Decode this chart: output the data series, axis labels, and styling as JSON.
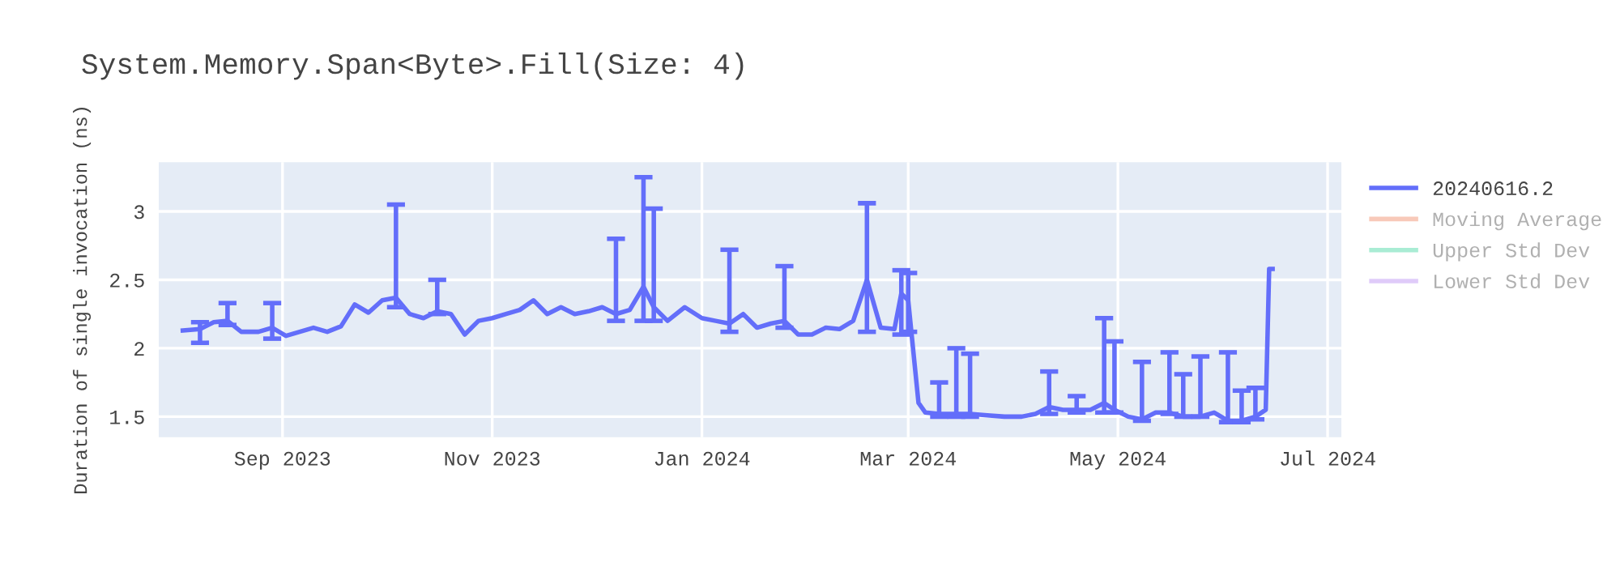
{
  "chart_data": {
    "type": "line",
    "title": "System.Memory.Span<Byte>.Fill(Size: 4)",
    "ylabel": "Duration of single invocation (ns)",
    "x": [
      "2023-08-03",
      "2023-08-08",
      "2023-08-12",
      "2023-08-16",
      "2023-08-20",
      "2023-08-25",
      "2023-08-29",
      "2023-09-02",
      "2023-09-06",
      "2023-09-10",
      "2023-09-14",
      "2023-09-18",
      "2023-09-22",
      "2023-09-26",
      "2023-09-30",
      "2023-10-04",
      "2023-10-08",
      "2023-10-12",
      "2023-10-16",
      "2023-10-20",
      "2023-10-24",
      "2023-10-28",
      "2023-11-01",
      "2023-11-05",
      "2023-11-09",
      "2023-11-13",
      "2023-11-17",
      "2023-11-21",
      "2023-11-25",
      "2023-11-29",
      "2023-12-03",
      "2023-12-07",
      "2023-12-11",
      "2023-12-15",
      "2023-12-18",
      "2023-12-22",
      "2023-12-27",
      "2024-01-01",
      "2024-01-05",
      "2024-01-09",
      "2024-01-13",
      "2024-01-17",
      "2024-01-21",
      "2024-01-25",
      "2024-01-29",
      "2024-02-02",
      "2024-02-06",
      "2024-02-10",
      "2024-02-14",
      "2024-02-18",
      "2024-02-22",
      "2024-02-26",
      "2024-02-28",
      "2024-03-01",
      "2024-03-04",
      "2024-03-06",
      "2024-03-10",
      "2024-03-15",
      "2024-03-19",
      "2024-03-24",
      "2024-03-29",
      "2024-04-03",
      "2024-04-07",
      "2024-04-11",
      "2024-04-15",
      "2024-04-19",
      "2024-04-23",
      "2024-04-27",
      "2024-04-30",
      "2024-05-04",
      "2024-05-08",
      "2024-05-12",
      "2024-05-16",
      "2024-05-20",
      "2024-05-25",
      "2024-05-29",
      "2024-06-02",
      "2024-06-06",
      "2024-06-10",
      "2024-06-13",
      "2024-06-14",
      "2024-06-15"
    ],
    "series": [
      {
        "name": "20240616.2",
        "color": "#636efa",
        "values": [
          2.13,
          2.14,
          2.19,
          2.2,
          2.12,
          2.12,
          2.15,
          2.09,
          2.12,
          2.15,
          2.12,
          2.16,
          2.32,
          2.26,
          2.35,
          2.37,
          2.25,
          2.22,
          2.27,
          2.25,
          2.1,
          2.2,
          2.22,
          2.25,
          2.28,
          2.35,
          2.25,
          2.3,
          2.25,
          2.27,
          2.3,
          2.25,
          2.28,
          2.45,
          2.3,
          2.2,
          2.3,
          2.22,
          2.2,
          2.18,
          2.25,
          2.15,
          2.18,
          2.2,
          2.1,
          2.1,
          2.15,
          2.14,
          2.2,
          2.5,
          2.15,
          2.14,
          2.4,
          2.35,
          1.6,
          1.53,
          1.52,
          1.52,
          1.52,
          1.51,
          1.5,
          1.5,
          1.52,
          1.57,
          1.55,
          1.55,
          1.55,
          1.6,
          1.55,
          1.5,
          1.48,
          1.53,
          1.53,
          1.5,
          1.5,
          1.53,
          1.47,
          1.47,
          1.5,
          1.55,
          2.58,
          2.58
        ],
        "errors": [
          null,
          [
            2.04,
            2.19
          ],
          null,
          [
            2.17,
            2.33
          ],
          null,
          null,
          [
            2.07,
            2.33
          ],
          null,
          null,
          null,
          null,
          null,
          null,
          null,
          null,
          [
            2.3,
            3.05
          ],
          null,
          null,
          [
            2.25,
            2.5
          ],
          null,
          null,
          null,
          null,
          null,
          null,
          null,
          null,
          null,
          null,
          null,
          null,
          [
            2.2,
            2.8
          ],
          null,
          [
            2.2,
            3.25
          ],
          [
            2.2,
            3.02
          ],
          null,
          null,
          null,
          null,
          [
            2.12,
            2.72
          ],
          null,
          null,
          null,
          [
            2.15,
            2.6
          ],
          null,
          null,
          null,
          null,
          null,
          [
            2.12,
            3.06
          ],
          null,
          null,
          [
            2.1,
            2.57
          ],
          [
            2.12,
            2.55
          ],
          null,
          null,
          [
            1.5,
            1.75
          ],
          [
            1.5,
            2.0
          ],
          [
            1.5,
            1.96
          ],
          null,
          null,
          null,
          null,
          [
            1.52,
            1.83
          ],
          null,
          [
            1.53,
            1.65
          ],
          null,
          [
            1.53,
            2.22
          ],
          [
            1.53,
            2.05
          ],
          null,
          [
            1.47,
            1.9
          ],
          null,
          [
            1.52,
            1.97
          ],
          [
            1.5,
            1.81
          ],
          [
            1.5,
            1.94
          ],
          null,
          [
            1.46,
            1.97
          ],
          [
            1.46,
            1.69
          ],
          [
            1.48,
            1.71
          ],
          null,
          null,
          null
        ]
      },
      {
        "name": "Moving Average",
        "color": "#f4a58a",
        "values": [
          null,
          null,
          null,
          null,
          null,
          null,
          null,
          null,
          null,
          null,
          null,
          null,
          null,
          null,
          null,
          null,
          null,
          null,
          null,
          null,
          null,
          null,
          null,
          null,
          null,
          null,
          null,
          null,
          null,
          null,
          null,
          null,
          null,
          null,
          null,
          null,
          null,
          null,
          null,
          null,
          null,
          null,
          null,
          null,
          null,
          null,
          null,
          null,
          null,
          null,
          null,
          null,
          null,
          null,
          null,
          null,
          null,
          null,
          null,
          null,
          null,
          null,
          null,
          null,
          null,
          null,
          null,
          null,
          null,
          null,
          null,
          null,
          null,
          null,
          null,
          null,
          null,
          null,
          null,
          null,
          null,
          null
        ]
      },
      {
        "name": "Upper Std Dev",
        "color": "#6fe0b8",
        "values": [
          null,
          null,
          null,
          null,
          null,
          null,
          null,
          null,
          null,
          null,
          null,
          null,
          null,
          null,
          null,
          null,
          null,
          null,
          null,
          null,
          null,
          null,
          null,
          null,
          null,
          null,
          null,
          null,
          null,
          null,
          null,
          null,
          null,
          null,
          null,
          null,
          null,
          null,
          null,
          null,
          null,
          null,
          null,
          null,
          null,
          null,
          null,
          null,
          null,
          null,
          null,
          null,
          null,
          null,
          null,
          null,
          null,
          null,
          null,
          null,
          null,
          null,
          null,
          null,
          null,
          null,
          null,
          null,
          null,
          null,
          null,
          null,
          null,
          null,
          null,
          null,
          null,
          null,
          null,
          null,
          null,
          null
        ]
      },
      {
        "name": "Lower Std Dev",
        "color": "#c9a8f5",
        "values": [
          null,
          null,
          null,
          null,
          null,
          null,
          null,
          null,
          null,
          null,
          null,
          null,
          null,
          null,
          null,
          null,
          null,
          null,
          null,
          null,
          null,
          null,
          null,
          null,
          null,
          null,
          null,
          null,
          null,
          null,
          null,
          null,
          null,
          null,
          null,
          null,
          null,
          null,
          null,
          null,
          null,
          null,
          null,
          null,
          null,
          null,
          null,
          null,
          null,
          null,
          null,
          null,
          null,
          null,
          null,
          null,
          null,
          null,
          null,
          null,
          null,
          null,
          null,
          null,
          null,
          null,
          null,
          null,
          null,
          null,
          null,
          null,
          null,
          null,
          null,
          null,
          null,
          null,
          null,
          null,
          null,
          null
        ]
      }
    ],
    "xlim": [
      "2023-07-27",
      "2024-07-05"
    ],
    "xticks": [
      {
        "value": "2023-09-01",
        "label": "Sep 2023"
      },
      {
        "value": "2023-11-01",
        "label": "Nov 2023"
      },
      {
        "value": "2024-01-01",
        "label": "Jan 2024"
      },
      {
        "value": "2024-03-01",
        "label": "Mar 2024"
      },
      {
        "value": "2024-05-01",
        "label": "May 2024"
      },
      {
        "value": "2024-07-01",
        "label": "Jul 2024"
      }
    ],
    "ylim": [
      1.35,
      3.36
    ],
    "yticks": [
      1.5,
      2,
      2.5,
      3
    ],
    "grid": true,
    "legend": "right"
  }
}
